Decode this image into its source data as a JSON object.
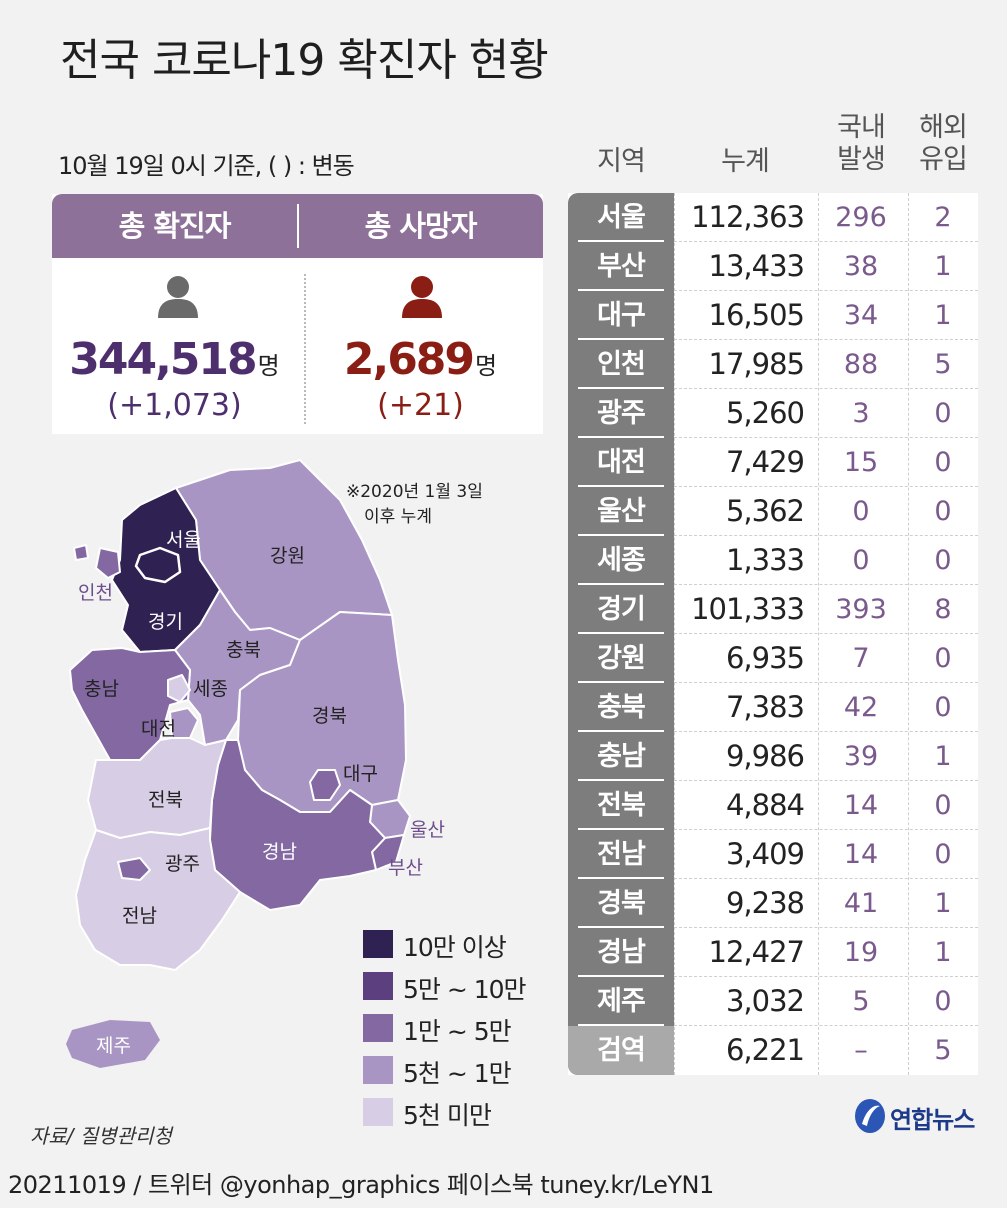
{
  "title": "전국 코로나19 확진자 현황",
  "basis": "10월 19일 0시 기준, ( ) : 변동",
  "summary": {
    "confirmed": {
      "label": "총 확진자",
      "value": "344,518",
      "unit": "명",
      "change": "(+1,073)",
      "color": "#4e2f6e"
    },
    "deaths": {
      "label": "총 사망자",
      "value": "2,689",
      "unit": "명",
      "change": "(+21)",
      "color": "#8b1e14"
    }
  },
  "map": {
    "note_line1": "※2020년 1월 3일",
    "note_line2": "이후 누계",
    "labels": {
      "seoul": "서울",
      "incheon": "인천",
      "gyeonggi": "경기",
      "gangwon": "강원",
      "chungbuk": "충북",
      "chungnam": "충남",
      "sejong": "세종",
      "daejeon": "대전",
      "gyeongbuk": "경북",
      "daegu": "대구",
      "jeonbuk": "전북",
      "gwangju": "광주",
      "jeonnam": "전남",
      "gyeongnam": "경남",
      "ulsan": "울산",
      "busan": "부산",
      "jeju": "제주"
    }
  },
  "legend": [
    {
      "label": "10만 이상",
      "color": "#2f2152"
    },
    {
      "label": "5만 ~ 10만",
      "color": "#5b3f7e"
    },
    {
      "label": "1만 ~ 5만",
      "color": "#8368a2"
    },
    {
      "label": "5천 ~ 1만",
      "color": "#a995c3"
    },
    {
      "label": "5천 미만",
      "color": "#d7cde5"
    }
  ],
  "table": {
    "headers": {
      "region": "지역",
      "total": "누계",
      "domestic_1": "국내",
      "domestic_2": "발생",
      "overseas_1": "해외",
      "overseas_2": "유입"
    },
    "rows": [
      {
        "region": "서울",
        "total": "112,363",
        "domestic": "296",
        "overseas": "2"
      },
      {
        "region": "부산",
        "total": "13,433",
        "domestic": "38",
        "overseas": "1"
      },
      {
        "region": "대구",
        "total": "16,505",
        "domestic": "34",
        "overseas": "1"
      },
      {
        "region": "인천",
        "total": "17,985",
        "domestic": "88",
        "overseas": "5"
      },
      {
        "region": "광주",
        "total": "5,260",
        "domestic": "3",
        "overseas": "0"
      },
      {
        "region": "대전",
        "total": "7,429",
        "domestic": "15",
        "overseas": "0"
      },
      {
        "region": "울산",
        "total": "5,362",
        "domestic": "0",
        "overseas": "0"
      },
      {
        "region": "세종",
        "total": "1,333",
        "domestic": "0",
        "overseas": "0"
      },
      {
        "region": "경기",
        "total": "101,333",
        "domestic": "393",
        "overseas": "8"
      },
      {
        "region": "강원",
        "total": "6,935",
        "domestic": "7",
        "overseas": "0"
      },
      {
        "region": "충북",
        "total": "7,383",
        "domestic": "42",
        "overseas": "0"
      },
      {
        "region": "충남",
        "total": "9,986",
        "domestic": "39",
        "overseas": "1"
      },
      {
        "region": "전북",
        "total": "4,884",
        "domestic": "14",
        "overseas": "0"
      },
      {
        "region": "전남",
        "total": "3,409",
        "domestic": "14",
        "overseas": "0"
      },
      {
        "region": "경북",
        "total": "9,238",
        "domestic": "41",
        "overseas": "1"
      },
      {
        "region": "경남",
        "total": "12,427",
        "domestic": "19",
        "overseas": "1"
      },
      {
        "region": "제주",
        "total": "3,032",
        "domestic": "5",
        "overseas": "0"
      },
      {
        "region": "검역",
        "total": "6,221",
        "domestic": "–",
        "overseas": "5"
      }
    ]
  },
  "source": "자료/ 질병관리청",
  "footer": "20211019 / 트위터 @yonhap_graphics  페이스북 tuney.kr/LeYN1",
  "logo": "연합뉴스"
}
